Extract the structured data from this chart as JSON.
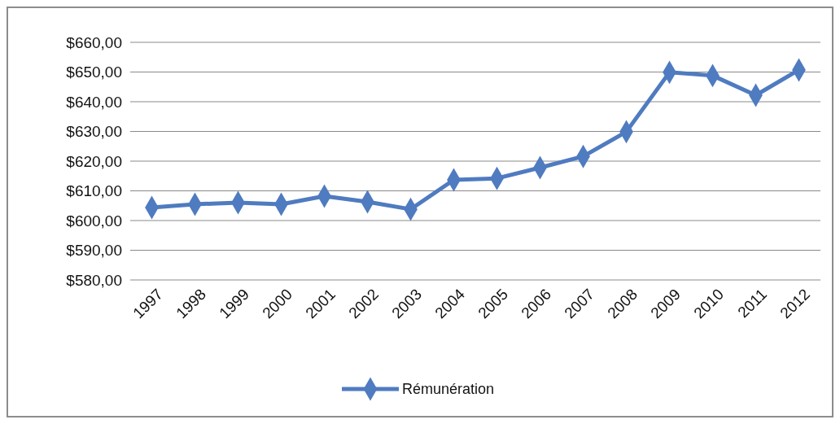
{
  "chart_data": {
    "type": "line",
    "categories": [
      "1997",
      "1998",
      "1999",
      "2000",
      "2001",
      "2002",
      "2003",
      "2004",
      "2005",
      "2006",
      "2007",
      "2008",
      "2009",
      "2010",
      "2011",
      "2012"
    ],
    "series": [
      {
        "name": "Rémunération",
        "color": "#4f7bc0",
        "values": [
          604.4,
          605.5,
          606,
          605.5,
          608.2,
          606.3,
          603.8,
          613.7,
          614.2,
          617.8,
          621.6,
          629.9,
          649.9,
          648.8,
          642.2,
          650.7
        ]
      }
    ],
    "ylim": [
      580,
      660
    ],
    "yticks": [
      {
        "value": 580,
        "label": "$580,00"
      },
      {
        "value": 590,
        "label": "$590,00"
      },
      {
        "value": 600,
        "label": "$600,00"
      },
      {
        "value": 610,
        "label": "$610,00"
      },
      {
        "value": 620,
        "label": "$620,00"
      },
      {
        "value": 630,
        "label": "$630,00"
      },
      {
        "value": 640,
        "label": "$640,00"
      },
      {
        "value": 650,
        "label": "$650,00"
      },
      {
        "value": 660,
        "label": "$660,00"
      }
    ],
    "grid": "y",
    "legend": "bottom",
    "marker": "diamond",
    "line_style": "solid"
  }
}
